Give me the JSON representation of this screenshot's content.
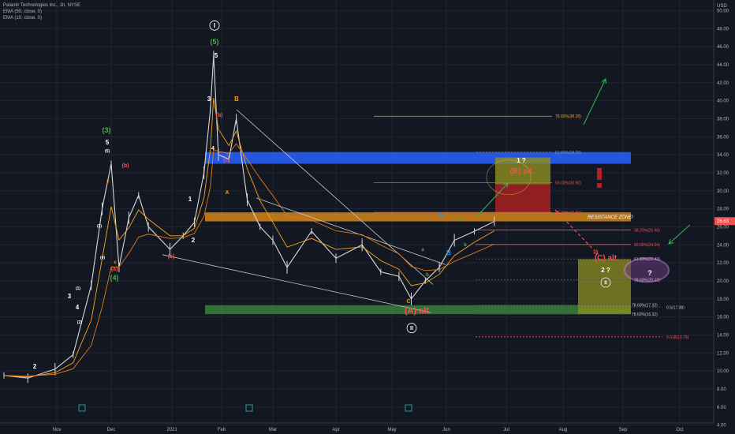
{
  "legend": {
    "title": "Palantir Technologies Inc., 1h, NYSE",
    "indicators": [
      "EMA (50, close, 0)",
      "EMA (10, close, 0)"
    ]
  },
  "colors": {
    "background": "#131722",
    "grid": "#1f2430",
    "axis_text": "#b2b5be",
    "price_candle": "#d9d9d9",
    "ema_fast": "#f4a71b",
    "ema_slow": "#e07a1a",
    "blue_zone": "#2962ff",
    "orange_zone": "#e08c1a",
    "green_zone": "#3f8f3a",
    "yellow_box": "#8f8f20",
    "red_box": "#b22222",
    "green_arrow": "#33b24d",
    "red_dash": "#ff4d4d",
    "wave_white": "#ffffff",
    "wave_green": "#4caf50",
    "wave_red": "#ef5350",
    "wave_orange": "#ff9800",
    "wave_blue": "#2196f3",
    "current_price_tag": "#ef5350"
  },
  "chart_data": {
    "type": "line",
    "title": "",
    "xlabel": "",
    "ylabel": "",
    "currency": "USD",
    "ylim": [
      3.0,
      51.0
    ],
    "y_ticks": [
      "4.00",
      "6.00",
      "8.00",
      "10.00",
      "12.00",
      "14.00",
      "16.00",
      "18.00",
      "20.00",
      "22.00",
      "24.00",
      "26.00",
      "28.00",
      "30.00",
      "32.00",
      "34.00",
      "36.00",
      "38.00",
      "40.00",
      "42.00",
      "44.00",
      "46.00",
      "48.00",
      "50.00"
    ],
    "x_ticks": [
      "Nov",
      "Dec",
      "2021",
      "Feb",
      "Mar",
      "Apr",
      "May",
      "Jun",
      "Jul",
      "Aug",
      "Sep",
      "Oct"
    ],
    "current_price": "26.63",
    "series": [
      {
        "x": [
          "Oct 01",
          "Oct 15",
          "Oct 31",
          "Nov 10",
          "Nov 20",
          "Nov 26",
          "Dec 01",
          "Dec 05",
          "Dec 10",
          "Dec 15",
          "Dec 20",
          "Dec 31",
          "Jan 08",
          "Jan 15",
          "Jan 21",
          "Jan 25",
          "Jan 27",
          "Jan 30",
          "Feb 05",
          "Feb 09",
          "Feb 15",
          "Feb 22",
          "Mar 01",
          "Mar 08",
          "Mar 20",
          "Apr 01",
          "Apr 15",
          "Apr 25",
          "May 05",
          "May 12",
          "May 20",
          "May 28",
          "Jun 05",
          "Jun 15",
          "Jun 25"
        ],
        "values": [
          9.5,
          9.2,
          10.2,
          11.8,
          19.5,
          28.0,
          33.0,
          21.5,
          27.0,
          29.5,
          26.0,
          23.5,
          25.0,
          26.5,
          32.0,
          39.0,
          45.0,
          34.0,
          33.5,
          38.0,
          29.0,
          26.0,
          24.5,
          21.5,
          25.5,
          22.5,
          24.0,
          21.0,
          20.5,
          18.0,
          20.0,
          21.5,
          24.5,
          25.5,
          26.6
        ]
      }
    ],
    "levels": [
      {
        "label": "78.60%(38.28)",
        "value": 38.28
      },
      {
        "label": "61.80%(34.29)",
        "value": 34.29
      },
      {
        "label": "50.00%(30.90)",
        "value": 30.9
      },
      {
        "label": "38.20%(27.60)",
        "value": 27.6
      },
      {
        "label": "38.20%(25.66)",
        "value": 25.66
      },
      {
        "label": "50.00%(24.04)",
        "value": 24.04
      },
      {
        "label": "61.80%(22.43)",
        "value": 22.43
      },
      {
        "label": "78.60%(20.12)",
        "value": 20.12
      },
      {
        "label": "78.60%(17.32)",
        "value": 17.32
      },
      {
        "label": "78.60%(16.32)",
        "value": 16.32
      },
      {
        "label": "0.5(17.08)",
        "value": 17.08
      },
      {
        "label": "0.618(13.79)",
        "value": 13.79
      }
    ],
    "resistance_label": "RESISTANCE ZONE!",
    "annotations": [
      {
        "text": "(A) alt.",
        "color": "wave_red"
      },
      {
        "text": "(B) alt.",
        "color": "wave_red"
      },
      {
        "text": "(C) alt",
        "color": "wave_red"
      },
      {
        "text": "1 ?",
        "color": "wave_white"
      },
      {
        "text": "2 ?",
        "color": "wave_white"
      },
      {
        "text": "?",
        "color": "wave_white"
      },
      {
        "text": "!",
        "color": "wave_red"
      }
    ],
    "wave_labels": [
      {
        "text": "I",
        "circled": true
      },
      {
        "text": "II",
        "circled": true
      },
      {
        "text": "II",
        "circled": true
      },
      {
        "text": "(5)"
      },
      {
        "text": "5"
      },
      {
        "text": "3"
      },
      {
        "text": "(3)"
      },
      {
        "text": "5"
      },
      {
        "text": "(4)"
      },
      {
        "text": "3"
      },
      {
        "text": "4"
      },
      {
        "text": "2"
      },
      {
        "text": "1"
      },
      {
        "text": "2"
      },
      {
        "text": "B"
      },
      {
        "text": "A"
      },
      {
        "text": "(b)"
      },
      {
        "text": "(b)"
      },
      {
        "text": "(c)"
      },
      {
        "text": "(c)"
      },
      {
        "text": "(a)"
      },
      {
        "text": "C"
      },
      {
        "text": "A"
      },
      {
        "text": "B"
      },
      {
        "text": "a"
      },
      {
        "text": "b"
      },
      {
        "text": "c"
      },
      {
        "text": "(1)"
      },
      {
        "text": "(2)"
      },
      {
        "text": "(3)"
      },
      {
        "text": "(4)"
      },
      {
        "text": "(5)"
      },
      {
        "text": "b"
      },
      {
        "text": "a"
      },
      {
        "text": "c"
      },
      {
        "text": "4"
      }
    ],
    "grid": true
  }
}
